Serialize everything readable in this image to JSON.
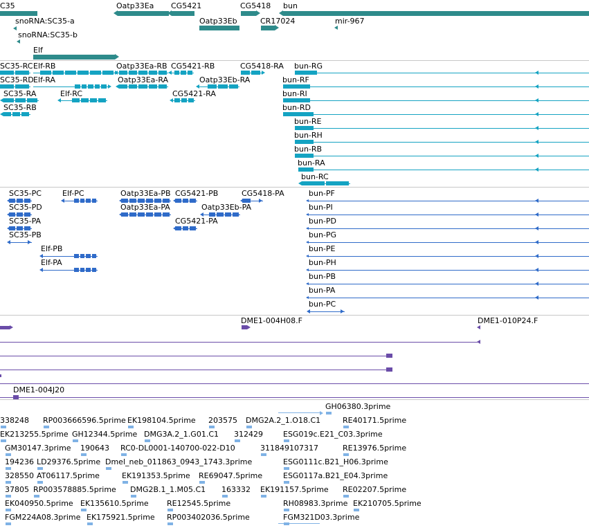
{
  "colors": {
    "gene": "#2e8b8b",
    "transcript": "#14a3c2",
    "protein": "#2f6bc9",
    "clone": "#6a4ca8",
    "est": "#7fb2e5",
    "separator": "#c8c8c8"
  },
  "gene_track": {
    "labels": [
      "C35",
      "Oatp33Ea",
      "CG5421",
      "CG5418",
      "bun",
      "snoRNA:SC35-a",
      "snoRNA:SC35-b",
      "Oatp33Eb",
      "CR17024",
      "mir-967",
      "Elf"
    ]
  },
  "transcript_track": {
    "labels": [
      "SC35-RC",
      "Elf-RB",
      "Oatp33Ea-RB",
      "CG5421-RB",
      "CG5418-RA",
      "bun-RG",
      "SC35-RD",
      "Elf-RA",
      "Oatp33Ea-RA",
      "Oatp33Eb-RA",
      "bun-RF",
      "SC35-RA",
      "Elf-RC",
      "CG5421-RA",
      "bun-RI",
      "SC35-RB",
      "bun-RD",
      "bun-RE",
      "bun-RH",
      "bun-RB",
      "bun-RA",
      "bun-RC"
    ]
  },
  "protein_track": {
    "labels": [
      "SC35-PC",
      "Elf-PC",
      "Oatp33Ea-PB",
      "CG5421-PB",
      "CG5418-PA",
      "bun-PF",
      "SC35-PD",
      "Oatp33Ea-PA",
      "Oatp33Eb-PA",
      "bun-PI",
      "SC35-PA",
      "CG5421-PA",
      "bun-PD",
      "SC35-PB",
      "bun-PG",
      "Elf-PB",
      "bun-PE",
      "Elf-PA",
      "bun-PH",
      "bun-PB",
      "bun-PA",
      "bun-PC"
    ]
  },
  "clone_track": {
    "labels": [
      "DME1-004H08.F",
      "DME1-010P24.F",
      "DME1-004J20"
    ]
  },
  "est_track": {
    "labels": [
      "GH06380.3prime",
      "338248",
      "RP003666596.5prime",
      "EK198104.5prime",
      "203575",
      "DMG2A.2_1.O18.C1",
      "RE40171.5prime",
      "EK213255.5prime",
      "GH12344.5prime",
      "DMG3A.2_1.G01.C1",
      "312429",
      "ESG019c.E21_C03.3prime",
      "GM30147.3prime",
      "190643",
      "RC0-DL0001-140700-022-D10",
      "311849107317",
      "RE13976.5prime",
      "194236",
      "LD29376.5prime",
      "Dmel_neb_011863_0943_1743.3prime",
      "ESG0111c.B21_H06.3prime",
      "328550",
      "AT06117.5prime",
      "EK191353.5prime",
      "RE69047.5prime",
      "ESG0117a.B21_E04.3prime",
      "37805",
      "RP003578885.5prime",
      "DMG2B.1_1.M05.C1",
      "163332",
      "EK191157.5prime",
      "RE02207.5prime",
      "EK040950.5prime",
      "EK135610.5prime",
      "RE12545.5prime",
      "RH08983.3prime",
      "EK210705.5prime",
      "FGM224A08.3prime",
      "EK175921.5prime",
      "RP003402036.5prime",
      "FGM321D03.3prime"
    ]
  }
}
